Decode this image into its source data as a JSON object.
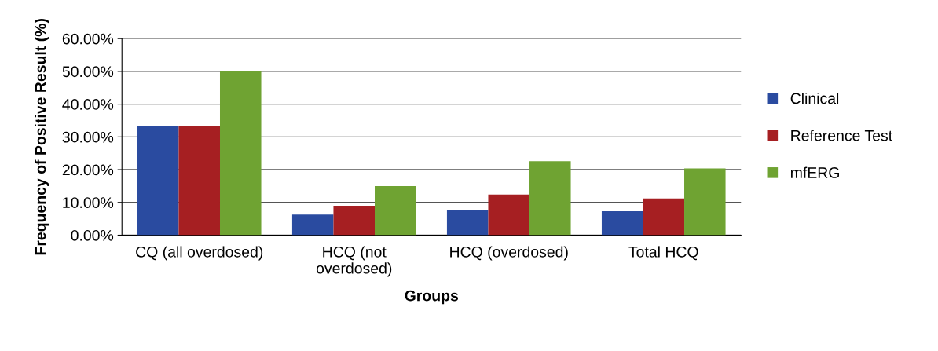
{
  "chart_data": {
    "type": "bar",
    "xlabel": "Groups",
    "ylabel": "Frequency of Positive Result (%)",
    "categories": [
      "CQ (all overdosed)",
      "HCQ (not\noverdosed)",
      "HCQ (overdosed)",
      "Total HCQ"
    ],
    "series": [
      {
        "name": "Clinical",
        "color": "#2a4ba0",
        "values": [
          33.3,
          6.3,
          7.8,
          7.3
        ]
      },
      {
        "name": "Reference Test",
        "color": "#a61f22",
        "values": [
          33.3,
          9.0,
          12.4,
          11.2
        ]
      },
      {
        "name": "mfERG",
        "color": "#6fa332",
        "values": [
          50.0,
          15.0,
          22.6,
          20.4
        ]
      }
    ],
    "ylim": [
      0,
      60
    ],
    "yticks": [
      {
        "value": 0,
        "label": "0.00%"
      },
      {
        "value": 10,
        "label": "10.00%"
      },
      {
        "value": 20,
        "label": "20.00%"
      },
      {
        "value": 30,
        "label": "30.00%"
      },
      {
        "value": 40,
        "label": "40.00%"
      },
      {
        "value": 50,
        "label": "50.00%"
      },
      {
        "value": 60,
        "label": "60.00%"
      }
    ],
    "grid": "y",
    "legend": "right"
  }
}
